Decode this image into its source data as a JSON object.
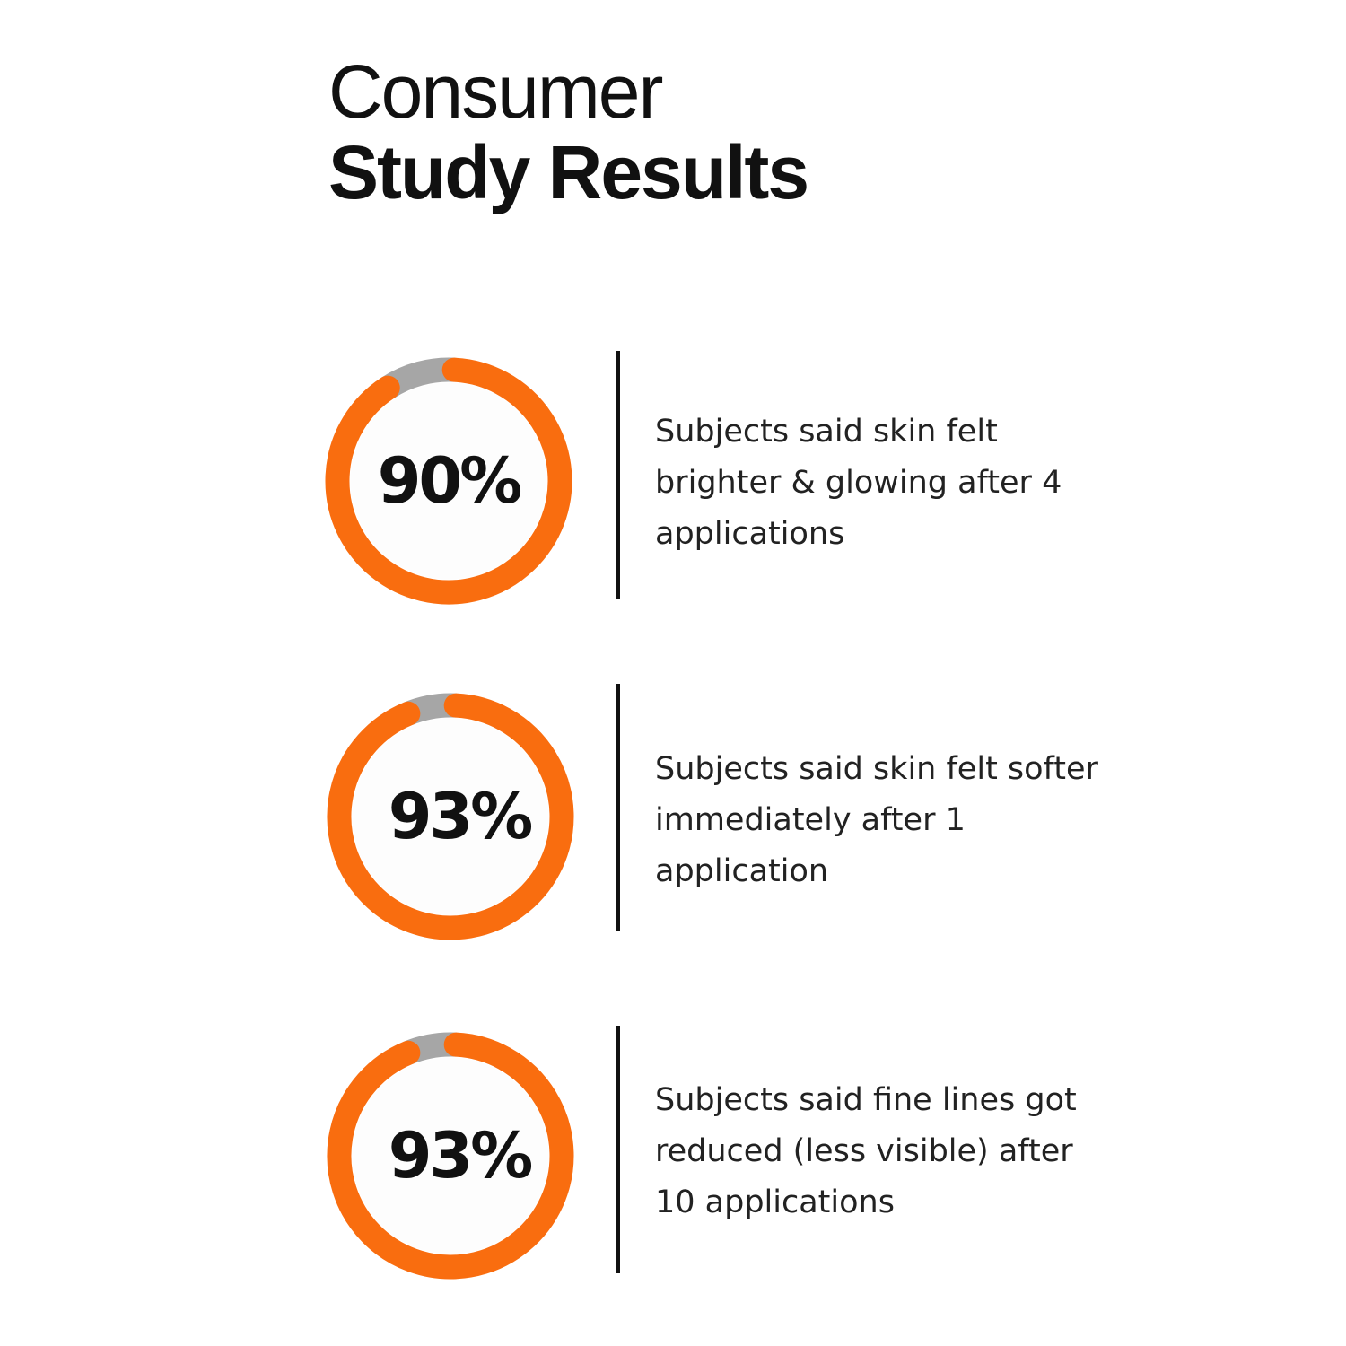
{
  "title": {
    "line1": "Consumer",
    "line2": "Study Results"
  },
  "colors": {
    "accent": "#F96D0F",
    "remainder": "#A6A6A6",
    "text": "#111111"
  },
  "chart_data": [
    {
      "type": "pie",
      "variant": "donut",
      "values": [
        90,
        10
      ],
      "label": "90%",
      "description": "Subjects said skin felt brighter & glowing after 4 applications"
    },
    {
      "type": "pie",
      "variant": "donut",
      "values": [
        93,
        7
      ],
      "label": "93%",
      "description": "Subjects said skin felt softer immediately after 1 application"
    },
    {
      "type": "pie",
      "variant": "donut",
      "values": [
        93,
        7
      ],
      "label": "93%",
      "description": "Subjects said fine lines got reduced (less visible) after 10 applications"
    }
  ]
}
